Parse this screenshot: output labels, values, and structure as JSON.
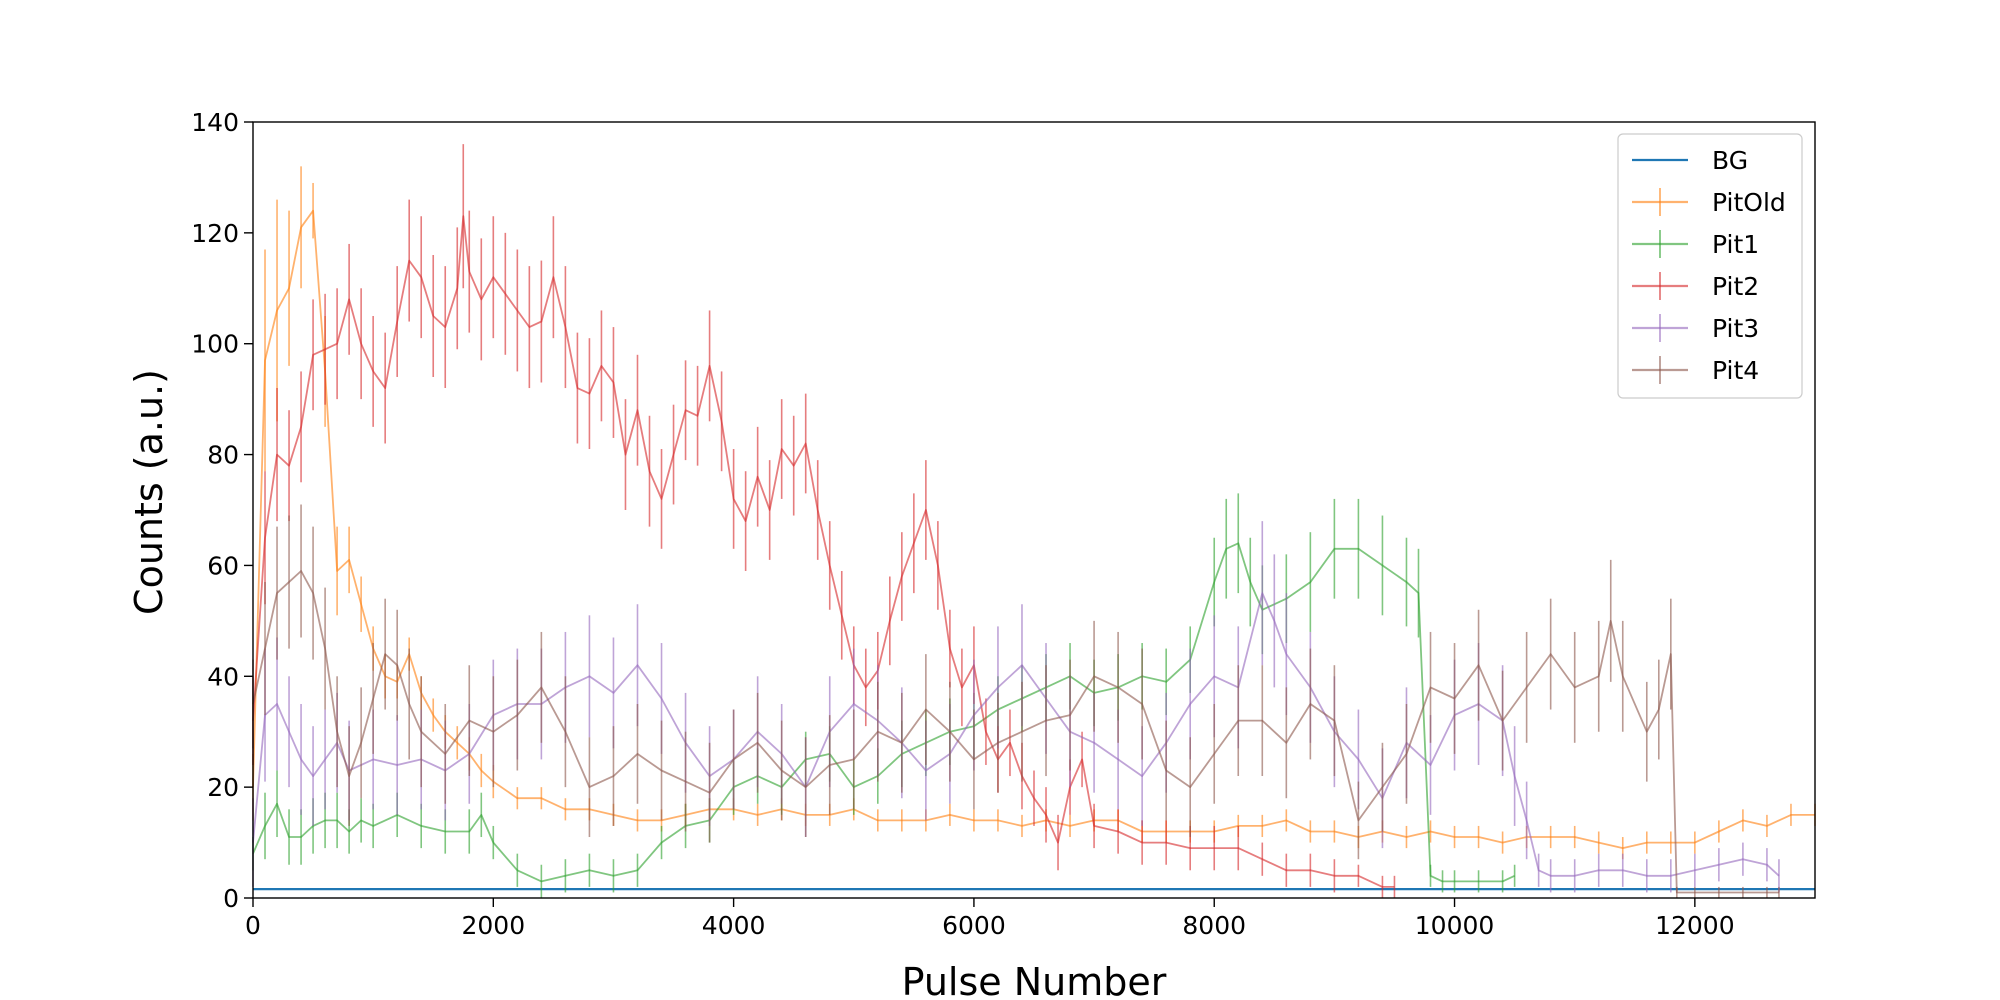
{
  "chart_data": {
    "type": "line",
    "title": "",
    "xlabel": "Pulse Number",
    "ylabel": "Counts (a.u.)",
    "xlim": [
      0,
      13000
    ],
    "ylim": [
      0,
      140
    ],
    "xticks": [
      0,
      2000,
      4000,
      6000,
      8000,
      10000,
      12000
    ],
    "xtick_labels": [
      "0",
      "2000",
      "4000",
      "6000",
      "8000",
      "10000",
      "12000"
    ],
    "yticks": [
      0,
      20,
      40,
      60,
      80,
      100,
      120,
      140
    ],
    "ytick_labels": [
      "0",
      "20",
      "40",
      "60",
      "80",
      "100",
      "120",
      "140"
    ],
    "grid": false,
    "legend_position": "top-right",
    "series": [
      {
        "name": "BG",
        "color": "#1f77b4",
        "errorbars": false,
        "x": [
          0,
          13000
        ],
        "y": [
          1.6,
          1.6
        ]
      },
      {
        "name": "PitOld",
        "color": "#ff7f0e",
        "errorbars": true,
        "x": [
          0,
          100,
          200,
          300,
          400,
          500,
          600,
          700,
          800,
          900,
          1000,
          1100,
          1200,
          1300,
          1400,
          1500,
          1600,
          1700,
          1800,
          1900,
          2000,
          2200,
          2400,
          2600,
          2800,
          3000,
          3200,
          3400,
          3600,
          3800,
          4000,
          4200,
          4400,
          4600,
          4800,
          5000,
          5200,
          5400,
          5600,
          5800,
          6000,
          6200,
          6400,
          6600,
          6800,
          7000,
          7200,
          7400,
          7600,
          7800,
          8000,
          8200,
          8400,
          8600,
          8800,
          9000,
          9200,
          9400,
          9600,
          9800,
          10000,
          10200,
          10400,
          10600,
          10800,
          11000,
          11200,
          11400,
          11600,
          11800,
          12000,
          12200,
          12400,
          12600,
          12800,
          13000
        ],
        "y": [
          20,
          97,
          106,
          110,
          121,
          124,
          95,
          59,
          61,
          53,
          45,
          40,
          39,
          44,
          37,
          33,
          30,
          28,
          26,
          23,
          21,
          18,
          18,
          16,
          16,
          15,
          14,
          14,
          15,
          16,
          16,
          15,
          16,
          15,
          15,
          16,
          14,
          14,
          14,
          15,
          14,
          14,
          13,
          14,
          13,
          14,
          14,
          12,
          12,
          12,
          12,
          13,
          13,
          14,
          12,
          12,
          11,
          12,
          11,
          12,
          11,
          11,
          10,
          11,
          11,
          11,
          10,
          9,
          10,
          10,
          10,
          12,
          14,
          13,
          15,
          15
        ],
        "err": [
          6,
          20,
          20,
          14,
          11,
          5,
          10,
          8,
          6,
          5,
          4,
          4,
          3,
          3,
          3,
          3,
          3,
          3,
          3,
          3,
          3,
          2,
          2,
          2,
          2,
          2,
          2,
          2,
          2,
          2,
          2,
          2,
          2,
          2,
          2,
          2,
          2,
          2,
          2,
          2,
          2,
          2,
          2,
          2,
          2,
          2,
          2,
          2,
          2,
          2,
          2,
          2,
          2,
          2,
          2,
          2,
          2,
          2,
          2,
          2,
          2,
          2,
          2,
          2,
          2,
          2,
          2,
          2,
          2,
          2,
          2,
          2,
          2,
          2,
          2,
          2
        ]
      },
      {
        "name": "Pit1",
        "color": "#2ca02c",
        "errorbars": true,
        "x": [
          0,
          100,
          200,
          300,
          400,
          500,
          600,
          700,
          800,
          900,
          1000,
          1200,
          1400,
          1600,
          1800,
          1900,
          2000,
          2200,
          2400,
          2600,
          2800,
          3000,
          3200,
          3400,
          3600,
          3800,
          4000,
          4200,
          4400,
          4600,
          4800,
          5000,
          5200,
          5400,
          5600,
          5800,
          6000,
          6200,
          6400,
          6600,
          6800,
          7000,
          7200,
          7400,
          7600,
          7800,
          8000,
          8100,
          8200,
          8300,
          8400,
          8600,
          8800,
          9000,
          9200,
          9400,
          9600,
          9700,
          9800,
          9900,
          10000,
          10200,
          10400,
          10500
        ],
        "y": [
          8,
          13,
          17,
          11,
          11,
          13,
          14,
          14,
          12,
          14,
          13,
          15,
          13,
          12,
          12,
          15,
          10,
          5,
          3,
          4,
          5,
          4,
          5,
          10,
          13,
          14,
          20,
          22,
          20,
          25,
          26,
          20,
          22,
          26,
          28,
          30,
          31,
          34,
          36,
          38,
          40,
          37,
          38,
          40,
          39,
          43,
          57,
          63,
          64,
          57,
          52,
          54,
          57,
          63,
          63,
          60,
          57,
          55,
          4,
          3,
          3,
          3,
          3,
          4
        ],
        "err": [
          3,
          6,
          6,
          5,
          5,
          5,
          5,
          5,
          4,
          4,
          4,
          4,
          4,
          4,
          4,
          4,
          3,
          3,
          3,
          3,
          3,
          3,
          3,
          3,
          4,
          4,
          5,
          5,
          5,
          5,
          5,
          5,
          5,
          6,
          6,
          6,
          6,
          6,
          6,
          6,
          6,
          6,
          6,
          6,
          6,
          6,
          8,
          9,
          9,
          8,
          8,
          8,
          9,
          9,
          9,
          9,
          8,
          8,
          2,
          2,
          2,
          2,
          2,
          2
        ]
      },
      {
        "name": "Pit2",
        "color": "#d62728",
        "errorbars": true,
        "x": [
          0,
          100,
          200,
          300,
          400,
          500,
          600,
          700,
          800,
          900,
          1000,
          1100,
          1200,
          1300,
          1400,
          1500,
          1600,
          1700,
          1750,
          1800,
          1900,
          2000,
          2100,
          2200,
          2300,
          2400,
          2500,
          2600,
          2700,
          2800,
          2900,
          3000,
          3100,
          3200,
          3300,
          3400,
          3500,
          3600,
          3700,
          3800,
          3900,
          4000,
          4100,
          4200,
          4300,
          4400,
          4500,
          4600,
          4700,
          4800,
          4900,
          5000,
          5100,
          5200,
          5300,
          5400,
          5500,
          5600,
          5700,
          5800,
          5900,
          6000,
          6100,
          6200,
          6300,
          6400,
          6500,
          6600,
          6700,
          6800,
          6900,
          7000,
          7200,
          7400,
          7600,
          7800,
          8000,
          8200,
          8400,
          8600,
          8800,
          9000,
          9200,
          9400,
          9500
        ],
        "y": [
          32,
          65,
          80,
          78,
          85,
          98,
          99,
          100,
          108,
          100,
          95,
          92,
          104,
          115,
          112,
          105,
          103,
          110,
          123,
          113,
          108,
          112,
          109,
          106,
          103,
          104,
          112,
          103,
          92,
          91,
          96,
          93,
          80,
          88,
          77,
          72,
          80,
          88,
          87,
          96,
          86,
          72,
          68,
          76,
          70,
          81,
          78,
          82,
          70,
          60,
          51,
          42,
          38,
          41,
          50,
          58,
          64,
          70,
          60,
          45,
          38,
          42,
          30,
          25,
          28,
          22,
          18,
          15,
          10,
          20,
          25,
          13,
          12,
          10,
          10,
          9,
          9,
          9,
          7,
          5,
          5,
          4,
          4,
          2,
          2
        ],
        "err": [
          8,
          12,
          12,
          10,
          10,
          10,
          10,
          10,
          10,
          10,
          10,
          10,
          10,
          11,
          11,
          11,
          11,
          11,
          13,
          11,
          11,
          11,
          11,
          11,
          11,
          11,
          11,
          11,
          10,
          10,
          10,
          10,
          10,
          10,
          10,
          9,
          9,
          9,
          9,
          10,
          9,
          9,
          9,
          9,
          9,
          9,
          9,
          9,
          9,
          8,
          8,
          7,
          7,
          7,
          8,
          8,
          9,
          9,
          8,
          7,
          7,
          7,
          6,
          6,
          6,
          6,
          5,
          5,
          5,
          5,
          5,
          4,
          4,
          4,
          4,
          4,
          4,
          4,
          3,
          3,
          3,
          3,
          2,
          2,
          2
        ]
      },
      {
        "name": "Pit3",
        "color": "#9467bd",
        "errorbars": true,
        "x": [
          0,
          100,
          200,
          300,
          400,
          500,
          600,
          700,
          800,
          1000,
          1200,
          1400,
          1600,
          1800,
          2000,
          2200,
          2400,
          2600,
          2800,
          3000,
          3200,
          3400,
          3600,
          3800,
          4000,
          4200,
          4400,
          4600,
          4800,
          5000,
          5200,
          5400,
          5600,
          5800,
          6000,
          6200,
          6400,
          6600,
          6800,
          7000,
          7200,
          7400,
          7600,
          7800,
          8000,
          8200,
          8400,
          8500,
          8600,
          8800,
          9000,
          9200,
          9400,
          9600,
          9800,
          10000,
          10200,
          10400,
          10500,
          10600,
          10700,
          10800,
          11000,
          11200,
          11400,
          11600,
          11800,
          12000,
          12200,
          12400,
          12600,
          12700
        ],
        "y": [
          10,
          33,
          35,
          30,
          25,
          22,
          25,
          28,
          23,
          25,
          24,
          25,
          23,
          26,
          33,
          35,
          35,
          38,
          40,
          37,
          42,
          36,
          28,
          22,
          25,
          30,
          26,
          20,
          30,
          35,
          32,
          28,
          23,
          26,
          33,
          38,
          42,
          36,
          30,
          28,
          25,
          22,
          28,
          35,
          40,
          38,
          55,
          50,
          44,
          38,
          30,
          25,
          18,
          28,
          24,
          33,
          35,
          32,
          22,
          14,
          5,
          4,
          4,
          5,
          5,
          4,
          4,
          5,
          6,
          7,
          6,
          4
        ],
        "err": [
          8,
          12,
          12,
          10,
          10,
          9,
          9,
          9,
          9,
          9,
          9,
          9,
          9,
          9,
          10,
          10,
          10,
          10,
          11,
          10,
          11,
          10,
          9,
          9,
          9,
          10,
          9,
          9,
          10,
          10,
          10,
          10,
          9,
          9,
          10,
          11,
          11,
          10,
          10,
          9,
          9,
          9,
          9,
          10,
          11,
          11,
          13,
          12,
          11,
          10,
          10,
          9,
          9,
          10,
          9,
          10,
          11,
          10,
          9,
          7,
          3,
          3,
          3,
          3,
          3,
          3,
          3,
          3,
          3,
          3,
          3,
          3
        ]
      },
      {
        "name": "Pit4",
        "color": "#8c564b",
        "errorbars": true,
        "x": [
          0,
          100,
          200,
          300,
          400,
          500,
          600,
          700,
          800,
          900,
          1000,
          1100,
          1200,
          1300,
          1400,
          1600,
          1800,
          2000,
          2200,
          2400,
          2600,
          2800,
          3000,
          3200,
          3400,
          3600,
          3800,
          4000,
          4200,
          4400,
          4600,
          4800,
          5000,
          5200,
          5400,
          5600,
          5800,
          6000,
          6200,
          6400,
          6600,
          6800,
          7000,
          7200,
          7400,
          7600,
          7800,
          8000,
          8200,
          8400,
          8600,
          8800,
          9000,
          9200,
          9400,
          9600,
          9800,
          10000,
          10200,
          10400,
          10600,
          10800,
          11000,
          11200,
          11300,
          11400,
          11600,
          11700,
          11800,
          11850,
          12000,
          12200,
          12400,
          12600,
          12700
        ],
        "y": [
          35,
          45,
          55,
          57,
          59,
          55,
          45,
          30,
          22,
          28,
          36,
          44,
          42,
          35,
          30,
          26,
          32,
          30,
          33,
          38,
          30,
          20,
          22,
          26,
          23,
          21,
          19,
          25,
          28,
          23,
          20,
          24,
          25,
          30,
          28,
          34,
          30,
          25,
          28,
          30,
          32,
          33,
          40,
          38,
          35,
          23,
          20,
          26,
          32,
          32,
          28,
          35,
          32,
          14,
          20,
          26,
          38,
          36,
          42,
          32,
          38,
          44,
          38,
          40,
          50,
          40,
          30,
          34,
          44,
          1,
          1,
          1,
          1,
          1,
          1
        ],
        "err": [
          8,
          12,
          12,
          12,
          12,
          12,
          11,
          10,
          9,
          10,
          10,
          10,
          10,
          10,
          10,
          9,
          10,
          10,
          10,
          10,
          10,
          9,
          9,
          9,
          9,
          9,
          9,
          9,
          9,
          9,
          9,
          9,
          9,
          9,
          9,
          10,
          9,
          9,
          9,
          9,
          10,
          10,
          10,
          10,
          10,
          9,
          9,
          9,
          10,
          10,
          10,
          10,
          10,
          7,
          8,
          9,
          10,
          10,
          10,
          9,
          10,
          10,
          10,
          10,
          11,
          10,
          9,
          9,
          10,
          1,
          1,
          1,
          1,
          1,
          1
        ]
      }
    ]
  }
}
